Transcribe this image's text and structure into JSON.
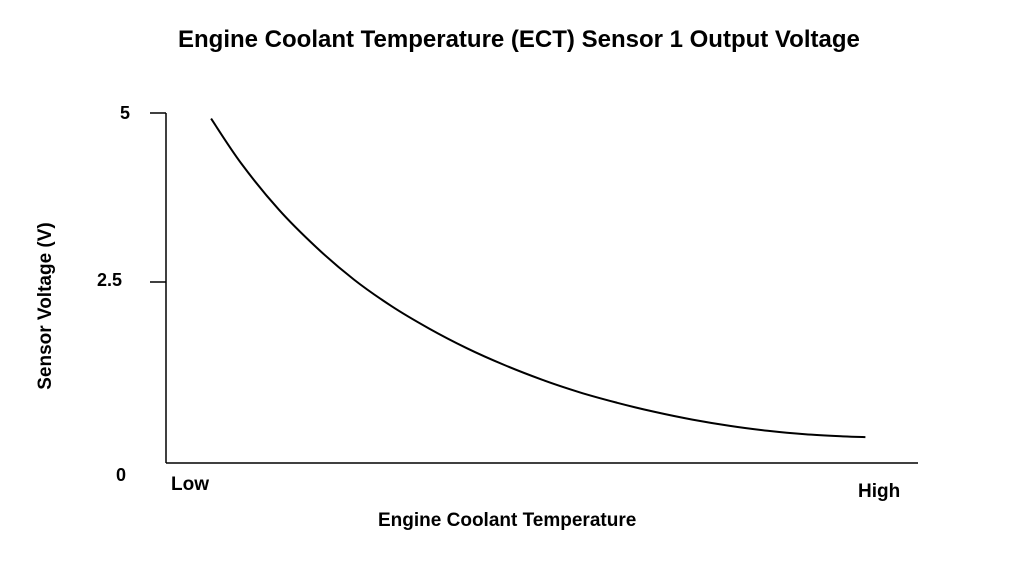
{
  "chart_data": {
    "type": "line",
    "title": "Engine Coolant Temperature (ECT) Sensor 1 Output Voltage",
    "xlabel": "Engine Coolant Temperature",
    "ylabel": "Sensor Voltage (V)",
    "x_ticks": [
      "Low",
      "High"
    ],
    "y_ticks": [
      "0",
      "2.5",
      "5"
    ],
    "ylim": [
      0,
      5
    ],
    "xlim": [
      0,
      1
    ],
    "grid": false,
    "series": [
      {
        "x": [
          0.06,
          0.1,
          0.15,
          0.2,
          0.25,
          0.3,
          0.35,
          0.4,
          0.45,
          0.5,
          0.55,
          0.6,
          0.65,
          0.7,
          0.75,
          0.8,
          0.85,
          0.9,
          0.93
        ],
        "values": [
          4.92,
          4.28,
          3.62,
          3.08,
          2.62,
          2.24,
          1.92,
          1.64,
          1.4,
          1.19,
          1.01,
          0.86,
          0.73,
          0.62,
          0.53,
          0.46,
          0.41,
          0.38,
          0.37
        ]
      }
    ],
    "line_color": "#000000"
  }
}
